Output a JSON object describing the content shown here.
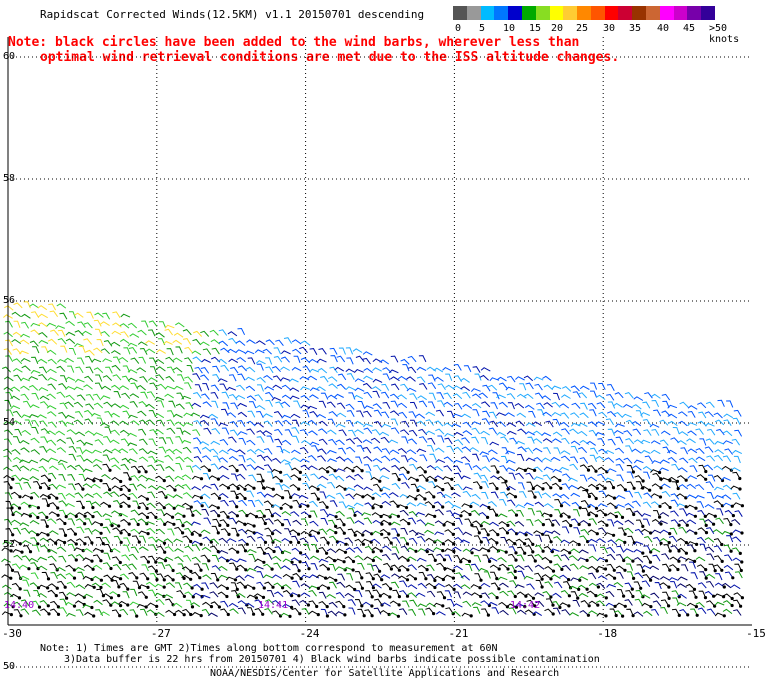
{
  "title": "Rapidscat Corrected Winds(12.5KM) v1.1 20150701 descending",
  "note_line1": "Note: black circles have been added to the wind barbs, wherever less than",
  "note_line2": "optimal wind retrieval conditions are met due to the ISS altitude changes.",
  "legend": {
    "colors": [
      "#555555",
      "#999999",
      "#00bbff",
      "#0077ff",
      "#0000cc",
      "#00aa00",
      "#88dd22",
      "#ffff00",
      "#ffcc33",
      "#ff8800",
      "#ff5500",
      "#ff0000",
      "#cc0033",
      "#993300",
      "#cc6633",
      "#ff00ff",
      "#cc00cc",
      "#7700aa",
      "#330099"
    ],
    "labels": [
      "0",
      "5",
      "10",
      "15",
      "20",
      "25",
      "30",
      "35",
      "40",
      "45",
      ">50 knots"
    ]
  },
  "map": {
    "lon_labels": [
      "-30",
      "-27",
      "-24",
      "-21",
      "-18",
      "-15"
    ],
    "lat_labels": [
      "60",
      "58",
      "56",
      "54",
      "52",
      "50"
    ],
    "time_labels": [
      "14:40",
      "14:41",
      "14:42"
    ]
  },
  "footer": {
    "line1": "Note: 1) Times are GMT 2)Times along bottom correspond to measurement at 60N",
    "line2": "3)Data buffer is 22 hrs from 20150701 4) Black wind barbs indicate possible contamination",
    "line3": "NOAA/NESDIS/Center for Satellite Applications and Research"
  }
}
